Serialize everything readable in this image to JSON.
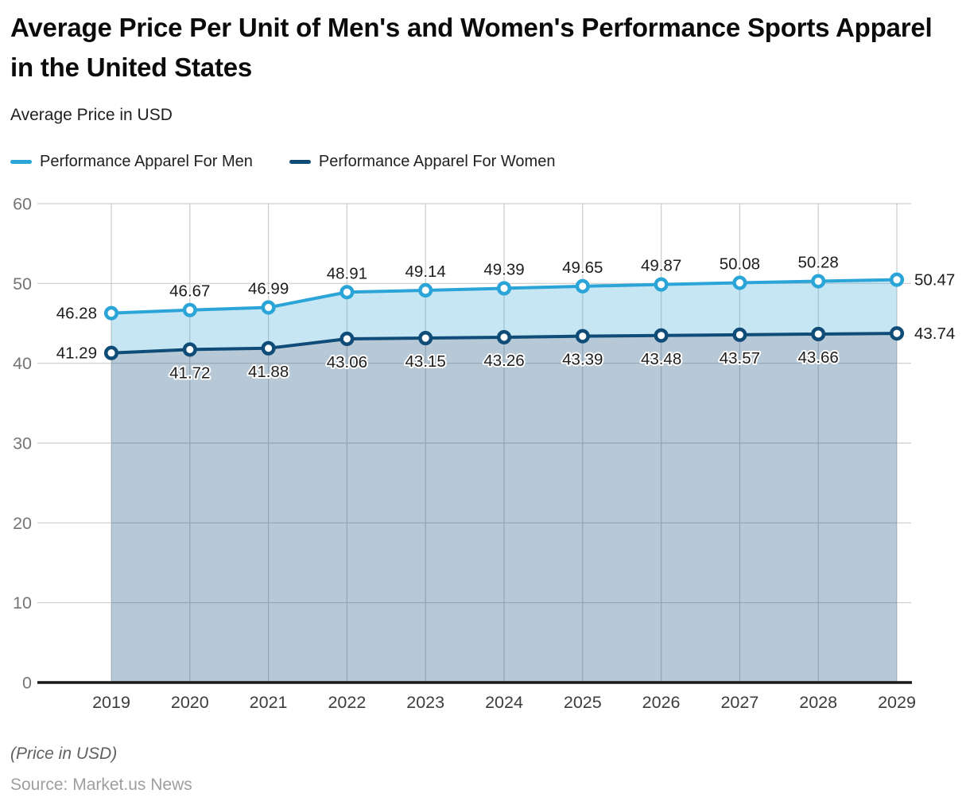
{
  "title": "Average Price Per Unit of Men's and Women's Performance Sports Apparel in the United States",
  "subtitle": "Average Price in USD",
  "legend": [
    {
      "label": "Performance Apparel For Men",
      "color": "#2BA4D8"
    },
    {
      "label": "Performance Apparel For Women",
      "color": "#0F4C78"
    }
  ],
  "footer": {
    "note": "(Price in USD)",
    "source": "Source: Market.us News"
  },
  "chart_data": {
    "type": "area",
    "title": "Average Price Per Unit of Men's and Women's Performance Sports Apparel in the United States",
    "subtitle": "Average Price in USD",
    "categories": [
      "2019",
      "2020",
      "2021",
      "2022",
      "2023",
      "2024",
      "2025",
      "2026",
      "2027",
      "2028",
      "2029"
    ],
    "series": [
      {
        "name": "Performance Apparel For Men",
        "color": "#2BA4D8",
        "fill": "rgba(43,164,216,0.27)",
        "values": [
          46.28,
          46.67,
          46.99,
          48.91,
          49.14,
          49.39,
          49.65,
          49.87,
          50.08,
          50.28,
          50.47
        ]
      },
      {
        "name": "Performance Apparel For Women",
        "color": "#0F4C78",
        "fill": "rgba(15,76,119,0.30)",
        "values": [
          41.29,
          41.72,
          41.88,
          43.06,
          43.15,
          43.26,
          43.39,
          43.48,
          43.57,
          43.66,
          43.74
        ]
      }
    ],
    "ylim": [
      0,
      60
    ],
    "yticks": [
      0,
      10,
      20,
      30,
      40,
      50,
      60
    ],
    "grid": true,
    "legend_position": "top",
    "axis_color": "#1a1a1a",
    "grid_color": "#cccccc",
    "marker_fill": "#ffffff"
  }
}
